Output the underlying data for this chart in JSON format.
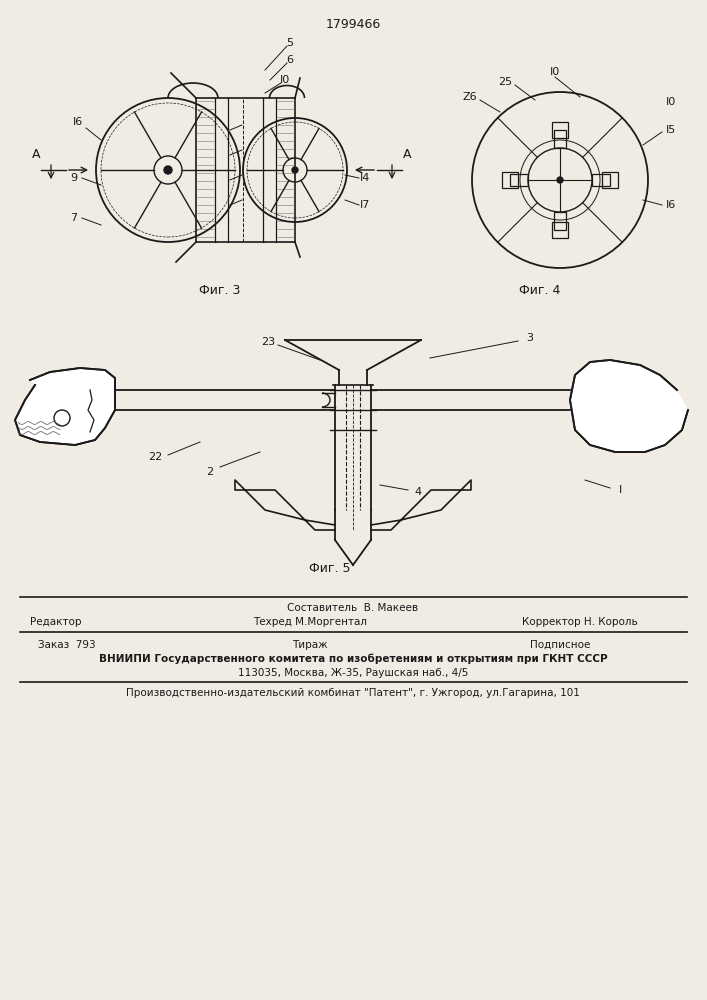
{
  "title": "1799466",
  "background_color": "#f0ece4",
  "fig3_label": "Фиг. 3",
  "fig4_label": "Фиг. 4",
  "fig5_label": "Фиг. 5",
  "footer_line0_center": "Составитель  В. Макеев",
  "footer_line1_left": "Редактор",
  "footer_line1_center": "Техред М.Моргентал",
  "footer_line1_right": "Корректор Н. Король",
  "footer_line2_left": "Заказ  793",
  "footer_line2_center": "Тираж",
  "footer_line2_right": "Подписное",
  "footer_line3": "ВНИИПИ Государственного комитета по изобретениям и открытиям при ГКНТ СССР",
  "footer_line4": "113035, Москва, Ж-35, Раушская наб., 4/5",
  "footer_line5": "Производственно-издательский комбинат \"Патент\", г. Ужгород, ул.Гагарина, 101",
  "line_color": "#1a1a1a",
  "text_color": "#1a1a1a"
}
